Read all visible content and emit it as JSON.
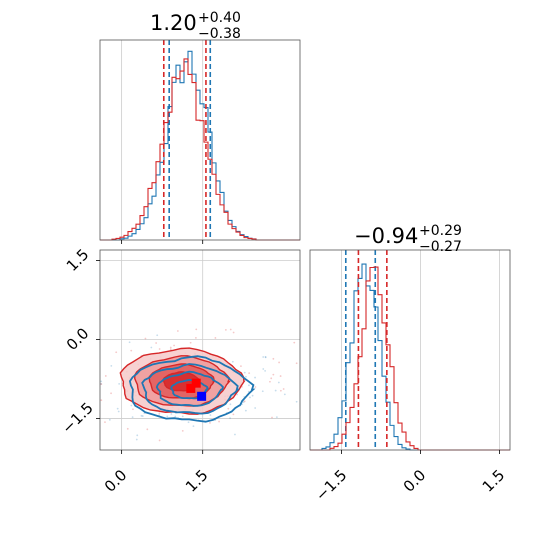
{
  "chart_data": [
    {
      "type": "histogram",
      "panel": "top-left marginal (parameter 1)",
      "title": {
        "value": "1.20",
        "upper": "+0.40",
        "lower": "−0.38"
      },
      "x_range": [
        -0.4,
        3.3
      ],
      "grid": true,
      "series": [
        {
          "name": "blue",
          "color": "#1f77b4",
          "quantiles": [
            0.88,
            1.64
          ],
          "peak": 1.22,
          "sigma": 0.38,
          "max_height": 0.9
        },
        {
          "name": "red",
          "color": "#d62728",
          "quantiles": [
            0.78,
            1.56
          ],
          "peak": 1.15,
          "sigma": 0.4,
          "max_height": 0.84
        }
      ]
    },
    {
      "type": "contour",
      "panel": "bottom-left joint (parameter 1 vs parameter 2)",
      "x_range": [
        -0.4,
        3.3
      ],
      "y_range": [
        -2.1,
        1.7
      ],
      "xticks": [
        "0.0",
        "1.5"
      ],
      "yticks": [
        "−1.5",
        "0.0",
        "1.5"
      ],
      "xtick_values": [
        0.0,
        1.5
      ],
      "ytick_values": [
        -1.5,
        0.0,
        1.5
      ],
      "grid": true,
      "series": [
        {
          "name": "blue",
          "color": "#1f77b4",
          "center": [
            1.25,
            -0.95
          ],
          "spread": [
            0.75,
            0.33
          ],
          "filled": false,
          "marker": [
            1.48,
            -1.08
          ]
        },
        {
          "name": "red",
          "color": "#d62728",
          "center": [
            1.1,
            -0.8
          ],
          "spread": [
            0.82,
            0.34
          ],
          "filled": true,
          "markers": [
            [
              1.38,
              -0.83
            ],
            [
              1.28,
              -0.93
            ]
          ]
        }
      ]
    },
    {
      "type": "histogram",
      "panel": "bottom-right marginal (parameter 2)",
      "title": {
        "value": "−0.94",
        "upper": "+0.29",
        "lower": "−0.27"
      },
      "x_range": [
        -2.1,
        1.7
      ],
      "xticks": [
        "−1.5",
        "0.0",
        "1.5"
      ],
      "xtick_values": [
        -1.5,
        0.0,
        1.5
      ],
      "grid": true,
      "series": [
        {
          "name": "blue",
          "color": "#1f77b4",
          "quantiles": [
            -1.42,
            -0.86
          ],
          "peak": -1.05,
          "sigma": 0.25,
          "max_height": 0.95
        },
        {
          "name": "red",
          "color": "#d62728",
          "quantiles": [
            -1.18,
            -0.64
          ],
          "peak": -0.88,
          "sigma": 0.26,
          "max_height": 0.88
        }
      ]
    }
  ]
}
